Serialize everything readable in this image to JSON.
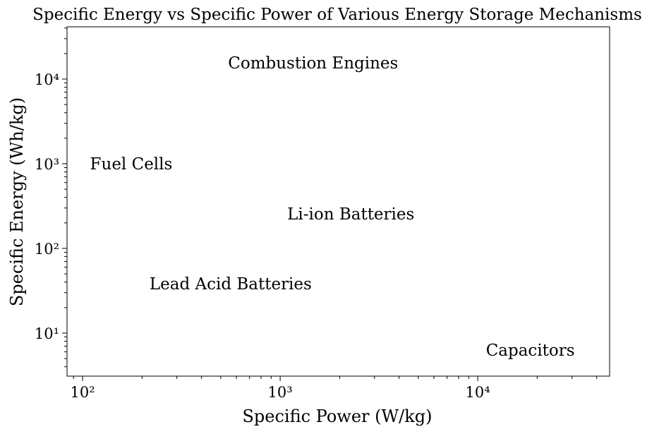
{
  "chart_data": {
    "type": "text",
    "title": "Specific Energy vs Specific Power of Various Energy Storage Mechanisms",
    "x_label": "Specific Power (W/kg)",
    "y_label": "Specific Energy (Wh/kg)",
    "log_x": true,
    "log_y": true,
    "xlim": [
      83.4,
      46500
    ],
    "ylim": [
      3.1,
      41400
    ],
    "xticks": [
      {
        "value": 100,
        "label": "10²"
      },
      {
        "value": 1000,
        "label": "10³"
      },
      {
        "value": 10000,
        "label": "10⁴"
      }
    ],
    "yticks": [
      {
        "value": 10,
        "label": "10¹"
      },
      {
        "value": 100,
        "label": "10²"
      },
      {
        "value": 1000,
        "label": "10³"
      },
      {
        "value": 10000,
        "label": "10⁴"
      }
    ],
    "annotations": [
      {
        "text": "Combustion Engines",
        "x": 545,
        "y": 13300
      },
      {
        "text": "Fuel Cells",
        "x": 109,
        "y": 860
      },
      {
        "text": "Li-ion Batteries",
        "x": 1086,
        "y": 220
      },
      {
        "text": "Lead Acid Batteries",
        "x": 218,
        "y": 33
      },
      {
        "text": "Capacitors",
        "x": 11000,
        "y": 5.4
      }
    ]
  }
}
